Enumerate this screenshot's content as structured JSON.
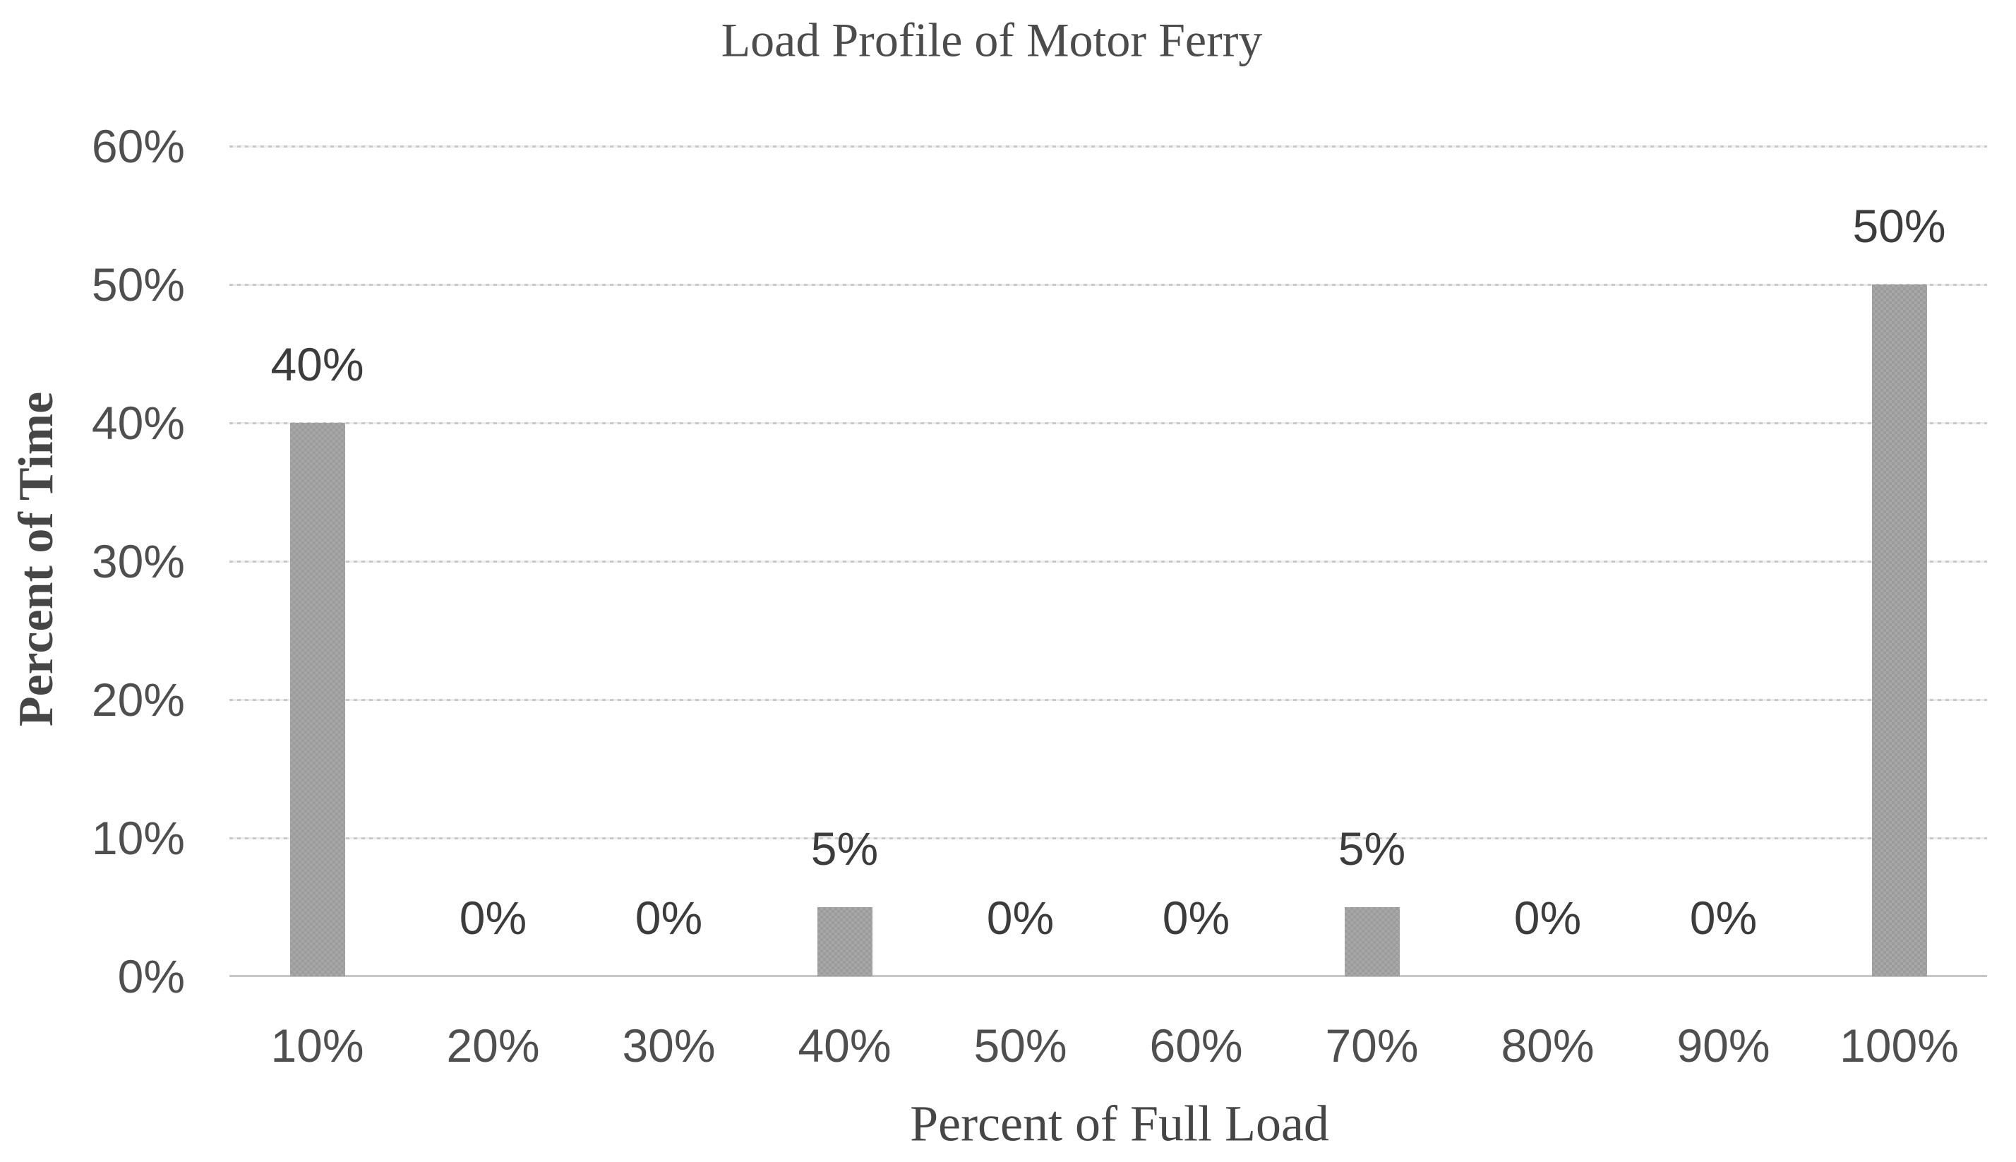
{
  "chart_data": {
    "type": "bar",
    "title": "Load Profile of Motor Ferry",
    "xlabel": "Percent of Full Load",
    "ylabel": "Percent of Time",
    "categories": [
      "10%",
      "20%",
      "30%",
      "40%",
      "50%",
      "60%",
      "70%",
      "80%",
      "90%",
      "100%"
    ],
    "values": [
      40,
      0,
      0,
      5,
      0,
      0,
      5,
      0,
      0,
      50
    ],
    "data_labels": [
      "40%",
      "0%",
      "0%",
      "5%",
      "0%",
      "0%",
      "5%",
      "0%",
      "0%",
      "50%"
    ],
    "ylim": [
      0,
      60
    ],
    "ytick_values": [
      0,
      10,
      20,
      30,
      40,
      50,
      60
    ],
    "ytick_labels": [
      "0%",
      "10%",
      "20%",
      "30%",
      "40%",
      "50%",
      "60%"
    ],
    "grid": "horizontal-dotted",
    "legend": "none",
    "colors": {
      "background": "#ffffff",
      "bar_fill": "#a7a7a7",
      "bar_fill_checker": "#9c9c9c",
      "gridline": "#c9c9c9",
      "axis_line": "#c6c6c6",
      "title_text": "#4c4c4c",
      "axis_title_text": "#464646",
      "tick_text": "#4f4f4f",
      "data_label_text": "#3c3c3c"
    }
  }
}
